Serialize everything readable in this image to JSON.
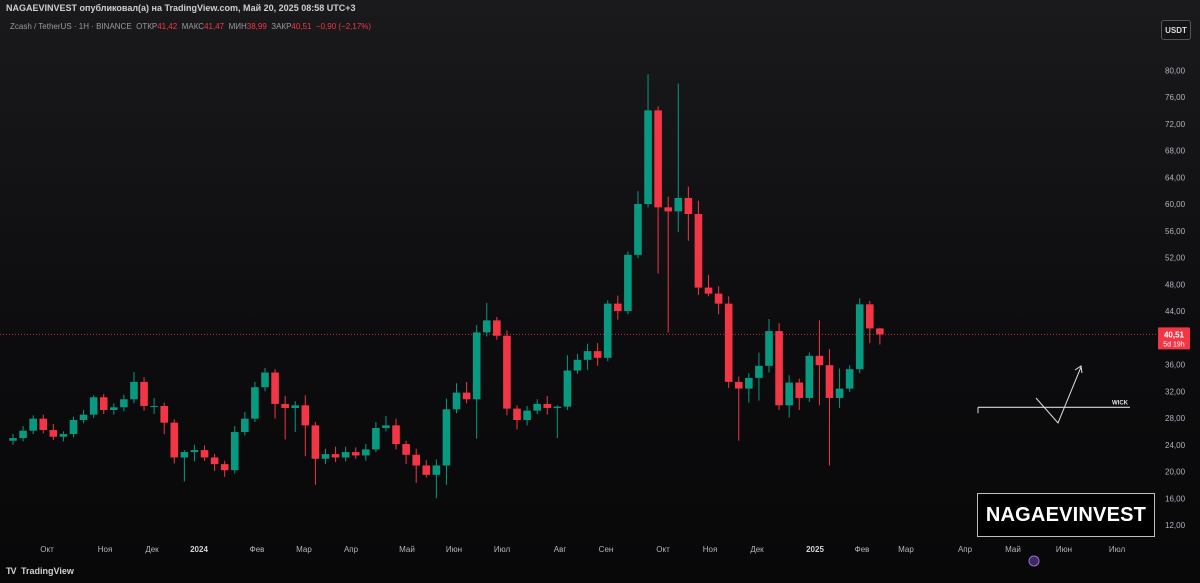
{
  "header": {
    "publisher_text": "NAGAEVINVEST опубликовал(а) на TradingView.com, Май 20, 2025 08:58 UTC+3",
    "symbol_text": "Zcash / TetherUS · 1Н · BINANCE",
    "open_label": "ОТКР",
    "open_value": "41,42",
    "high_label": "МАКС",
    "high_value": "41,47",
    "low_label": "МИН",
    "low_value": "38,99",
    "close_label": "ЗАКР",
    "close_value": "40,51",
    "change_value": "−0,90 (−2,17%)"
  },
  "currency_button": "USDT",
  "price_badge": {
    "price": "40,51",
    "countdown": "5d 19h"
  },
  "footer": {
    "logo": "TV",
    "brand": "TradingView"
  },
  "watermark": "NAGAEVINVEST",
  "colors": {
    "up": "#089981",
    "down": "#f23645",
    "background": "#0b0b0d",
    "text": "#b2b5be"
  },
  "chart_data": {
    "type": "candlestick",
    "interval": "weekly",
    "ylim": [
      10,
      84
    ],
    "y_ticks": [
      "12,00",
      "16,00",
      "20,00",
      "24,00",
      "28,00",
      "32,00",
      "36,00",
      "40,00",
      "44,00",
      "48,00",
      "52,00",
      "56,00",
      "60,00",
      "64,00",
      "68,00",
      "72,00",
      "76,00",
      "80,00"
    ],
    "x_ticks": [
      "Окт",
      "Ноя",
      "Дек",
      "2024",
      "Фев",
      "Мар",
      "Апр",
      "Май",
      "Июн",
      "Июл",
      "Авг",
      "Сен",
      "Окт",
      "Ноя",
      "Дек",
      "2025",
      "Фев",
      "Мар",
      "Апр",
      "Май",
      "Июн",
      "Июл"
    ],
    "current_price": 40.51,
    "annotation": {
      "label": "WICK",
      "level": 29.6
    },
    "candles": [
      {
        "o": 24.6,
        "h": 25.6,
        "l": 24.0,
        "c": 25.0
      },
      {
        "o": 25.0,
        "h": 26.8,
        "l": 24.5,
        "c": 26.1
      },
      {
        "o": 26.1,
        "h": 28.4,
        "l": 25.6,
        "c": 27.9
      },
      {
        "o": 27.9,
        "h": 28.5,
        "l": 25.7,
        "c": 26.2
      },
      {
        "o": 26.2,
        "h": 27.1,
        "l": 24.7,
        "c": 25.2
      },
      {
        "o": 25.2,
        "h": 26.0,
        "l": 24.5,
        "c": 25.6
      },
      {
        "o": 25.6,
        "h": 28.2,
        "l": 25.1,
        "c": 27.7
      },
      {
        "o": 27.7,
        "h": 29.2,
        "l": 27.2,
        "c": 28.5
      },
      {
        "o": 28.5,
        "h": 31.4,
        "l": 28.0,
        "c": 31.1
      },
      {
        "o": 31.1,
        "h": 31.6,
        "l": 28.6,
        "c": 29.2
      },
      {
        "o": 29.2,
        "h": 30.2,
        "l": 28.5,
        "c": 29.6
      },
      {
        "o": 29.6,
        "h": 31.5,
        "l": 29.0,
        "c": 30.8
      },
      {
        "o": 30.8,
        "h": 34.9,
        "l": 30.2,
        "c": 33.4
      },
      {
        "o": 33.4,
        "h": 34.1,
        "l": 29.1,
        "c": 29.8
      },
      {
        "o": 29.8,
        "h": 31.0,
        "l": 28.6,
        "c": 29.8
      },
      {
        "o": 29.8,
        "h": 30.3,
        "l": 25.6,
        "c": 27.3
      },
      {
        "o": 27.3,
        "h": 27.8,
        "l": 21.2,
        "c": 22.1
      },
      {
        "o": 22.1,
        "h": 23.2,
        "l": 18.5,
        "c": 22.9
      },
      {
        "o": 22.9,
        "h": 24.0,
        "l": 21.5,
        "c": 23.2
      },
      {
        "o": 23.2,
        "h": 23.9,
        "l": 21.6,
        "c": 22.1
      },
      {
        "o": 22.1,
        "h": 22.6,
        "l": 20.1,
        "c": 21.1
      },
      {
        "o": 21.1,
        "h": 21.6,
        "l": 19.2,
        "c": 20.2
      },
      {
        "o": 20.2,
        "h": 26.8,
        "l": 19.7,
        "c": 25.9
      },
      {
        "o": 25.9,
        "h": 28.9,
        "l": 25.4,
        "c": 27.9
      },
      {
        "o": 27.9,
        "h": 33.4,
        "l": 27.4,
        "c": 32.6
      },
      {
        "o": 32.6,
        "h": 35.5,
        "l": 32.0,
        "c": 34.8
      },
      {
        "o": 34.8,
        "h": 35.3,
        "l": 27.9,
        "c": 30.1
      },
      {
        "o": 30.1,
        "h": 31.3,
        "l": 24.8,
        "c": 29.5
      },
      {
        "o": 29.5,
        "h": 30.5,
        "l": 25.9,
        "c": 29.9
      },
      {
        "o": 29.9,
        "h": 31.4,
        "l": 22.3,
        "c": 26.9
      },
      {
        "o": 26.9,
        "h": 27.4,
        "l": 18.0,
        "c": 21.9
      },
      {
        "o": 21.9,
        "h": 23.4,
        "l": 21.1,
        "c": 22.6
      },
      {
        "o": 22.6,
        "h": 23.7,
        "l": 21.4,
        "c": 22.1
      },
      {
        "o": 22.1,
        "h": 23.7,
        "l": 21.5,
        "c": 22.9
      },
      {
        "o": 22.9,
        "h": 23.6,
        "l": 21.9,
        "c": 22.4
      },
      {
        "o": 22.4,
        "h": 24.1,
        "l": 21.6,
        "c": 23.3
      },
      {
        "o": 23.3,
        "h": 27.4,
        "l": 22.9,
        "c": 26.5
      },
      {
        "o": 26.5,
        "h": 28.3,
        "l": 26.0,
        "c": 26.9
      },
      {
        "o": 26.9,
        "h": 27.9,
        "l": 23.3,
        "c": 24.1
      },
      {
        "o": 24.1,
        "h": 24.6,
        "l": 21.1,
        "c": 22.5
      },
      {
        "o": 22.5,
        "h": 23.4,
        "l": 18.3,
        "c": 20.9
      },
      {
        "o": 20.9,
        "h": 21.7,
        "l": 19.1,
        "c": 19.5
      },
      {
        "o": 19.5,
        "h": 21.8,
        "l": 16.0,
        "c": 20.9
      },
      {
        "o": 20.9,
        "h": 30.9,
        "l": 18.0,
        "c": 29.3
      },
      {
        "o": 29.3,
        "h": 33.2,
        "l": 28.7,
        "c": 31.8
      },
      {
        "o": 31.8,
        "h": 33.4,
        "l": 30.2,
        "c": 30.8
      },
      {
        "o": 30.8,
        "h": 41.9,
        "l": 24.9,
        "c": 40.8
      },
      {
        "o": 40.8,
        "h": 45.2,
        "l": 40.2,
        "c": 42.6
      },
      {
        "o": 42.6,
        "h": 43.1,
        "l": 39.7,
        "c": 40.3
      },
      {
        "o": 40.3,
        "h": 41.1,
        "l": 28.4,
        "c": 29.4
      },
      {
        "o": 29.4,
        "h": 29.9,
        "l": 26.3,
        "c": 27.7
      },
      {
        "o": 27.7,
        "h": 29.8,
        "l": 26.9,
        "c": 29.1
      },
      {
        "o": 29.1,
        "h": 30.8,
        "l": 28.6,
        "c": 30.1
      },
      {
        "o": 30.1,
        "h": 31.3,
        "l": 28.5,
        "c": 29.5
      },
      {
        "o": 29.5,
        "h": 29.9,
        "l": 25.0,
        "c": 29.7
      },
      {
        "o": 29.7,
        "h": 37.4,
        "l": 29.2,
        "c": 35.1
      },
      {
        "o": 35.1,
        "h": 37.6,
        "l": 34.6,
        "c": 36.7
      },
      {
        "o": 36.7,
        "h": 39.1,
        "l": 35.2,
        "c": 38.0
      },
      {
        "o": 38.0,
        "h": 39.2,
        "l": 35.8,
        "c": 37.0
      },
      {
        "o": 37.0,
        "h": 45.6,
        "l": 36.5,
        "c": 45.1
      },
      {
        "o": 45.1,
        "h": 46.3,
        "l": 42.7,
        "c": 44.0
      },
      {
        "o": 44.0,
        "h": 52.9,
        "l": 43.5,
        "c": 52.4
      },
      {
        "o": 52.4,
        "h": 61.9,
        "l": 51.9,
        "c": 60.0
      },
      {
        "o": 60.0,
        "h": 79.4,
        "l": 59.5,
        "c": 74.0
      },
      {
        "o": 74.0,
        "h": 74.6,
        "l": 49.6,
        "c": 59.5
      },
      {
        "o": 59.5,
        "h": 61.1,
        "l": 40.8,
        "c": 58.9
      },
      {
        "o": 58.9,
        "h": 78.0,
        "l": 55.8,
        "c": 60.9
      },
      {
        "o": 60.9,
        "h": 62.6,
        "l": 54.5,
        "c": 58.5
      },
      {
        "o": 58.5,
        "h": 60.5,
        "l": 46.4,
        "c": 47.5
      },
      {
        "o": 47.5,
        "h": 49.4,
        "l": 46.2,
        "c": 46.6
      },
      {
        "o": 46.6,
        "h": 47.7,
        "l": 43.5,
        "c": 45.1
      },
      {
        "o": 45.1,
        "h": 46.2,
        "l": 32.5,
        "c": 33.4
      },
      {
        "o": 33.4,
        "h": 34.2,
        "l": 24.6,
        "c": 32.4
      },
      {
        "o": 32.4,
        "h": 34.7,
        "l": 30.3,
        "c": 34.0
      },
      {
        "o": 34.0,
        "h": 37.8,
        "l": 30.6,
        "c": 35.8
      },
      {
        "o": 35.8,
        "h": 42.8,
        "l": 34.8,
        "c": 41.0
      },
      {
        "o": 41.0,
        "h": 42.2,
        "l": 29.2,
        "c": 29.9
      },
      {
        "o": 29.9,
        "h": 34.4,
        "l": 28.1,
        "c": 33.3
      },
      {
        "o": 33.3,
        "h": 33.9,
        "l": 29.2,
        "c": 31.0
      },
      {
        "o": 31.0,
        "h": 37.8,
        "l": 30.4,
        "c": 37.3
      },
      {
        "o": 37.3,
        "h": 42.6,
        "l": 29.9,
        "c": 35.9
      },
      {
        "o": 35.9,
        "h": 38.3,
        "l": 20.9,
        "c": 31.0
      },
      {
        "o": 31.0,
        "h": 35.4,
        "l": 29.5,
        "c": 32.4
      },
      {
        "o": 32.4,
        "h": 35.9,
        "l": 31.9,
        "c": 35.3
      },
      {
        "o": 35.3,
        "h": 45.9,
        "l": 34.7,
        "c": 45.0
      },
      {
        "o": 45.0,
        "h": 45.5,
        "l": 39.2,
        "c": 41.4
      },
      {
        "o": 41.4,
        "h": 41.5,
        "l": 39.0,
        "c": 40.5
      }
    ]
  }
}
